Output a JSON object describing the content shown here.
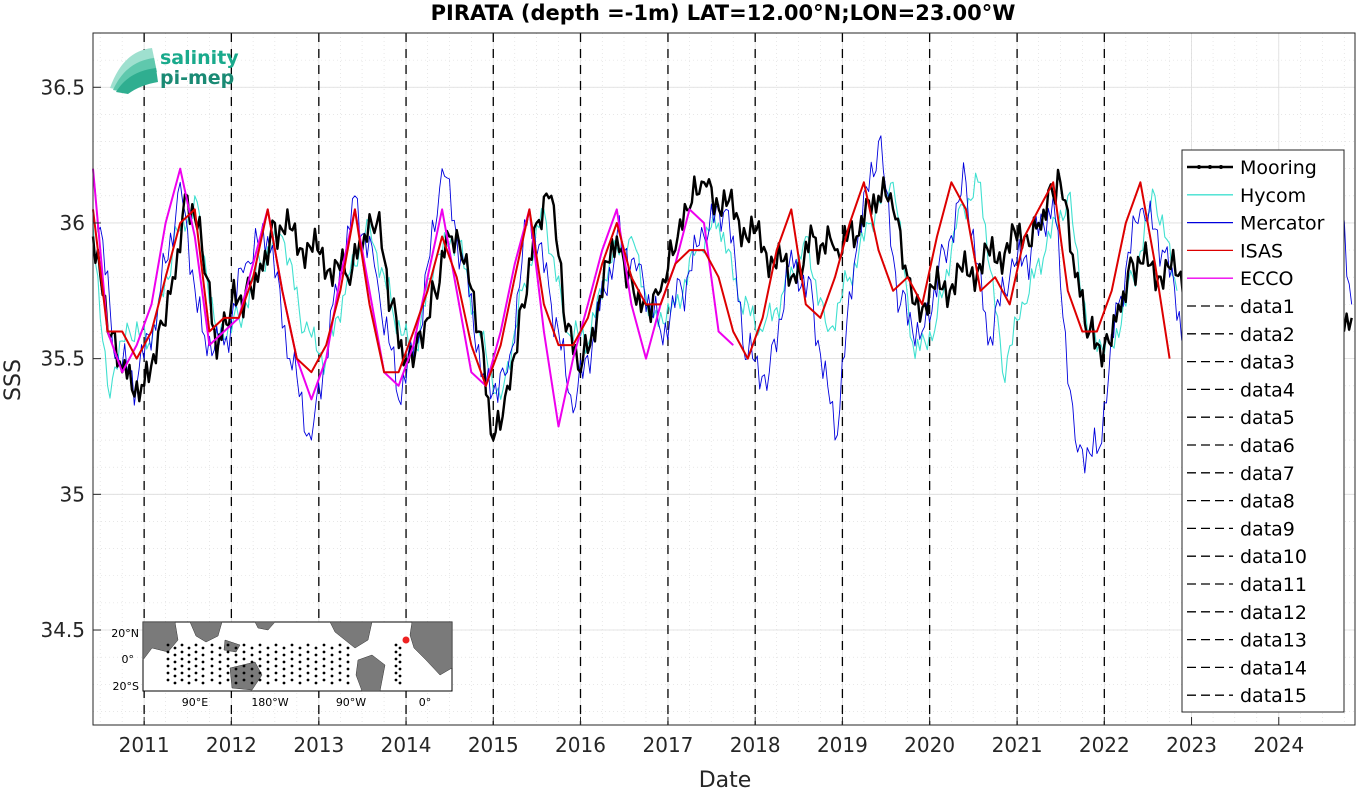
{
  "chart_data": {
    "type": "line",
    "title": "PIRATA (depth =-1m) LAT=12.00°N;LON=23.00°W",
    "xlabel": "Date",
    "ylabel": "SSS",
    "xlim": [
      "2010-06-01",
      "2024-11-15"
    ],
    "ylim": [
      34.15,
      36.7
    ],
    "yticks": [
      34.5,
      35,
      35.5,
      36,
      36.5
    ],
    "ytick_labels": [
      "34.5",
      "35",
      "35.5",
      "36",
      "36.5"
    ],
    "xticks": [
      "2011",
      "2012",
      "2013",
      "2014",
      "2015",
      "2016",
      "2017",
      "2018",
      "2019",
      "2020",
      "2021",
      "2022",
      "2023",
      "2024"
    ],
    "grid": true,
    "legend_position": "right",
    "year_markers": [
      "2011-01-01",
      "2012-01-01",
      "2013-01-01",
      "2014-01-01",
      "2015-01-01",
      "2016-01-01",
      "2017-01-01",
      "2018-01-01",
      "2019-01-01",
      "2020-01-01",
      "2021-01-01",
      "2022-01-01"
    ],
    "series": [
      {
        "name": "Mooring",
        "color": "#000000",
        "style": "solid-dots",
        "x": [
          "2010-06",
          "2010-08",
          "2010-10",
          "2011-01",
          "2011-03",
          "2011-05",
          "2011-07",
          "2011-09",
          "2011-11",
          "2012-01",
          "2012-03",
          "2012-05",
          "2012-07",
          "2013-05",
          "2013-07",
          "2013-09",
          "2013-11",
          "2014-01",
          "2014-03",
          "2014-05",
          "2014-07",
          "2014-09",
          "2014-11",
          "2015-01",
          "2015-03",
          "2015-05",
          "2015-07",
          "2015-09",
          "2015-11",
          "2016-01",
          "2016-06",
          "2016-08",
          "2016-10",
          "2016-12",
          "2017-02",
          "2017-04",
          "2017-06",
          "2018-06",
          "2018-09",
          "2018-12",
          "2019-03",
          "2019-06",
          "2019-08",
          "2019-10",
          "2019-11",
          "2021-02",
          "2021-04",
          "2021-06",
          "2021-07",
          "2021-09",
          "2021-11",
          "2022-01",
          "2022-03",
          "2022-05",
          "2024-11"
        ],
        "y": [
          35.95,
          35.6,
          35.45,
          35.4,
          35.6,
          35.8,
          36.1,
          35.9,
          35.5,
          35.7,
          35.75,
          35.85,
          36.0,
          35.8,
          35.9,
          36.0,
          35.7,
          35.5,
          35.6,
          35.75,
          35.95,
          35.85,
          35.6,
          35.2,
          35.4,
          35.7,
          36.0,
          36.1,
          35.6,
          35.45,
          35.95,
          35.8,
          35.7,
          35.75,
          35.9,
          36.05,
          36.15,
          35.8,
          35.95,
          35.9,
          35.95,
          36.1,
          36.05,
          35.8,
          35.7,
          35.95,
          36.0,
          36.1,
          36.15,
          35.8,
          35.6,
          35.55,
          35.7,
          35.85,
          35.65
        ]
      },
      {
        "name": "Hycom",
        "color": "#40e0d0",
        "style": "solid",
        "x": [
          "2010-06",
          "2010-08",
          "2010-11",
          "2011-02",
          "2011-05",
          "2011-08",
          "2011-11",
          "2012-02",
          "2012-05",
          "2012-08",
          "2012-11",
          "2013-02",
          "2013-05",
          "2013-08",
          "2013-11",
          "2014-02",
          "2014-05",
          "2014-08",
          "2014-11",
          "2015-02",
          "2015-05",
          "2015-08",
          "2015-11",
          "2016-02",
          "2016-05",
          "2016-08",
          "2016-11",
          "2017-02",
          "2017-05",
          "2017-08",
          "2017-11",
          "2018-02",
          "2018-05",
          "2018-08",
          "2018-11",
          "2019-02",
          "2019-05",
          "2019-08",
          "2019-11",
          "2020-02",
          "2020-05",
          "2020-08",
          "2020-11",
          "2021-02",
          "2021-05",
          "2021-08",
          "2021-11",
          "2022-02",
          "2022-05",
          "2022-08",
          "2022-11"
        ],
        "y": [
          36.0,
          35.4,
          35.6,
          35.55,
          35.9,
          36.1,
          35.6,
          35.65,
          35.85,
          35.95,
          35.6,
          35.5,
          35.8,
          36.0,
          35.7,
          35.5,
          35.85,
          35.95,
          35.6,
          35.35,
          35.75,
          36.05,
          35.6,
          35.55,
          35.85,
          35.95,
          35.65,
          35.7,
          35.9,
          36.0,
          35.7,
          35.6,
          35.75,
          35.95,
          35.6,
          35.8,
          36.0,
          36.15,
          35.5,
          35.65,
          36.05,
          36.15,
          35.45,
          35.7,
          35.9,
          36.1,
          35.6,
          35.55,
          35.8,
          36.1,
          35.75
        ]
      },
      {
        "name": "Mercator",
        "color": "#0000dd",
        "style": "solid",
        "x": [
          "2010-06",
          "2010-09",
          "2010-12",
          "2011-03",
          "2011-06",
          "2011-09",
          "2011-12",
          "2012-03",
          "2012-06",
          "2012-09",
          "2012-12",
          "2013-03",
          "2013-06",
          "2013-09",
          "2013-12",
          "2014-03",
          "2014-06",
          "2014-09",
          "2014-12",
          "2015-03",
          "2015-06",
          "2015-09",
          "2015-12",
          "2016-03",
          "2016-06",
          "2016-09",
          "2016-12",
          "2017-03",
          "2017-06",
          "2017-09",
          "2017-12",
          "2018-03",
          "2018-06",
          "2018-09",
          "2018-12",
          "2019-03",
          "2019-06",
          "2019-09",
          "2019-12",
          "2020-03",
          "2020-06",
          "2020-09",
          "2020-12",
          "2021-03",
          "2021-06",
          "2021-09",
          "2021-12",
          "2022-03",
          "2022-06",
          "2022-09",
          "2022-12",
          "2023-03",
          "2023-06",
          "2023-09",
          "2023-12",
          "2024-03",
          "2024-06",
          "2024-09",
          "2024-11"
        ],
        "y": [
          36.2,
          35.5,
          35.4,
          35.7,
          36.15,
          35.6,
          35.55,
          35.85,
          35.95,
          35.5,
          35.2,
          35.7,
          36.1,
          35.8,
          35.35,
          35.6,
          36.2,
          35.85,
          35.4,
          35.45,
          36.05,
          35.7,
          35.3,
          35.6,
          35.95,
          35.85,
          35.6,
          35.75,
          35.95,
          36.05,
          35.5,
          35.45,
          35.9,
          35.7,
          35.2,
          35.9,
          36.3,
          35.7,
          35.6,
          35.9,
          36.15,
          35.55,
          35.8,
          35.9,
          36.1,
          35.2,
          35.15,
          35.7,
          36.05,
          35.9,
          35.6,
          35.7,
          35.85,
          35.95,
          35.7,
          35.9,
          36.1,
          36.2,
          35.7
        ]
      },
      {
        "name": "ISAS",
        "color": "#dd0000",
        "style": "solid",
        "x": [
          "2010-06",
          "2010-08",
          "2010-10",
          "2010-12",
          "2011-02",
          "2011-04",
          "2011-06",
          "2011-08",
          "2011-10",
          "2011-12",
          "2012-02",
          "2012-04",
          "2012-06",
          "2012-08",
          "2012-10",
          "2012-12",
          "2013-02",
          "2013-04",
          "2013-06",
          "2013-08",
          "2013-10",
          "2013-12",
          "2014-02",
          "2014-04",
          "2014-06",
          "2014-08",
          "2014-10",
          "2014-12",
          "2015-02",
          "2015-04",
          "2015-06",
          "2015-08",
          "2015-10",
          "2015-12",
          "2016-02",
          "2016-04",
          "2016-06",
          "2016-08",
          "2016-10",
          "2016-12",
          "2017-02",
          "2017-04",
          "2017-06",
          "2017-08",
          "2017-10",
          "2017-12",
          "2018-02",
          "2018-04",
          "2018-06",
          "2018-08",
          "2018-10",
          "2018-12",
          "2019-02",
          "2019-04",
          "2019-06",
          "2019-08",
          "2019-10",
          "2019-12",
          "2020-02",
          "2020-04",
          "2020-06",
          "2020-08",
          "2020-10",
          "2020-12",
          "2021-02",
          "2021-04",
          "2021-06",
          "2021-08",
          "2021-10",
          "2021-12",
          "2022-02",
          "2022-04",
          "2022-06",
          "2022-08",
          "2022-10"
        ],
        "y": [
          36.05,
          35.6,
          35.6,
          35.5,
          35.6,
          35.8,
          36.0,
          36.05,
          35.6,
          35.65,
          35.65,
          35.8,
          36.05,
          35.75,
          35.5,
          35.45,
          35.55,
          35.75,
          36.05,
          35.7,
          35.45,
          35.45,
          35.6,
          35.75,
          35.95,
          35.8,
          35.55,
          35.4,
          35.55,
          35.8,
          36.05,
          35.7,
          35.55,
          35.55,
          35.65,
          35.85,
          36.0,
          35.8,
          35.7,
          35.7,
          35.85,
          35.9,
          35.9,
          35.8,
          35.6,
          35.5,
          35.65,
          35.9,
          36.05,
          35.7,
          35.65,
          35.8,
          36.0,
          36.15,
          35.9,
          35.75,
          35.8,
          35.7,
          35.95,
          36.15,
          36.05,
          35.75,
          35.8,
          35.7,
          35.95,
          36.05,
          36.15,
          35.75,
          35.6,
          35.6,
          35.75,
          36.0,
          36.15,
          35.85,
          35.5
        ]
      },
      {
        "name": "ECCO",
        "color": "#ee00ee",
        "style": "solid",
        "x": [
          "2010-06",
          "2010-08",
          "2010-10",
          "2010-12",
          "2011-02",
          "2011-04",
          "2011-06",
          "2011-08",
          "2011-10",
          "2011-12",
          "2012-02",
          "2012-04",
          "2012-06",
          "2012-08",
          "2012-10",
          "2012-12",
          "2013-02",
          "2013-04",
          "2013-06",
          "2013-08",
          "2013-10",
          "2013-12",
          "2014-02",
          "2014-04",
          "2014-06",
          "2014-08",
          "2014-10",
          "2014-12",
          "2015-02",
          "2015-04",
          "2015-06",
          "2015-08",
          "2015-10",
          "2015-12",
          "2016-02",
          "2016-04",
          "2016-06",
          "2016-08",
          "2016-10",
          "2016-12",
          "2017-02",
          "2017-04",
          "2017-06",
          "2017-08",
          "2017-10"
        ],
        "y": [
          36.2,
          35.6,
          35.45,
          35.55,
          35.7,
          36.0,
          36.2,
          35.95,
          35.55,
          35.6,
          35.65,
          35.85,
          36.05,
          35.75,
          35.5,
          35.35,
          35.5,
          35.8,
          36.05,
          35.75,
          35.45,
          35.4,
          35.55,
          35.8,
          36.05,
          35.75,
          35.45,
          35.4,
          35.6,
          35.85,
          36.05,
          35.6,
          35.25,
          35.5,
          35.7,
          35.9,
          36.05,
          35.7,
          35.5,
          35.7,
          35.85,
          36.05,
          36.0,
          35.6,
          35.55
        ]
      }
    ],
    "dashed_series_names": [
      "data1",
      "data2",
      "data3",
      "data4",
      "data5",
      "data6",
      "data7",
      "data8",
      "data9",
      "data10",
      "data11",
      "data12",
      "data13",
      "data14",
      "data15"
    ]
  },
  "legend": {
    "items": [
      {
        "label": "Mooring",
        "color": "#000000",
        "dash": "none",
        "marker": true
      },
      {
        "label": "Hycom",
        "color": "#40e0d0",
        "dash": "none",
        "marker": false
      },
      {
        "label": "Mercator",
        "color": "#0000dd",
        "dash": "none",
        "marker": false
      },
      {
        "label": "ISAS",
        "color": "#dd0000",
        "dash": "none",
        "marker": false
      },
      {
        "label": "ECCO",
        "color": "#ee00ee",
        "dash": "none",
        "marker": false
      },
      {
        "label": "data1",
        "color": "#000000",
        "dash": "9,5",
        "marker": false
      },
      {
        "label": "data2",
        "color": "#000000",
        "dash": "9,5",
        "marker": false
      },
      {
        "label": "data3",
        "color": "#000000",
        "dash": "9,5",
        "marker": false
      },
      {
        "label": "data4",
        "color": "#000000",
        "dash": "9,5",
        "marker": false
      },
      {
        "label": "data5",
        "color": "#000000",
        "dash": "9,5",
        "marker": false
      },
      {
        "label": "data6",
        "color": "#000000",
        "dash": "9,5",
        "marker": false
      },
      {
        "label": "data7",
        "color": "#000000",
        "dash": "9,5",
        "marker": false
      },
      {
        "label": "data8",
        "color": "#000000",
        "dash": "9,5",
        "marker": false
      },
      {
        "label": "data9",
        "color": "#000000",
        "dash": "9,5",
        "marker": false
      },
      {
        "label": "data10",
        "color": "#000000",
        "dash": "9,5",
        "marker": false
      },
      {
        "label": "data11",
        "color": "#000000",
        "dash": "9,5",
        "marker": false
      },
      {
        "label": "data12",
        "color": "#000000",
        "dash": "9,5",
        "marker": false
      },
      {
        "label": "data13",
        "color": "#000000",
        "dash": "9,5",
        "marker": false
      },
      {
        "label": "data14",
        "color": "#000000",
        "dash": "9,5",
        "marker": false
      },
      {
        "label": "data15",
        "color": "#000000",
        "dash": "9,5",
        "marker": false
      }
    ]
  },
  "logo": {
    "line1": "salinity",
    "line2": "pi-mep",
    "color1": "#1aaa8c",
    "color2": "#1a8a74"
  },
  "inset_map": {
    "lat_labels": [
      "20°N",
      "0°",
      "20°S"
    ],
    "lon_labels": [
      "90°E",
      "180°W",
      "90°W",
      "0°"
    ],
    "station_color": "#ee2222"
  }
}
